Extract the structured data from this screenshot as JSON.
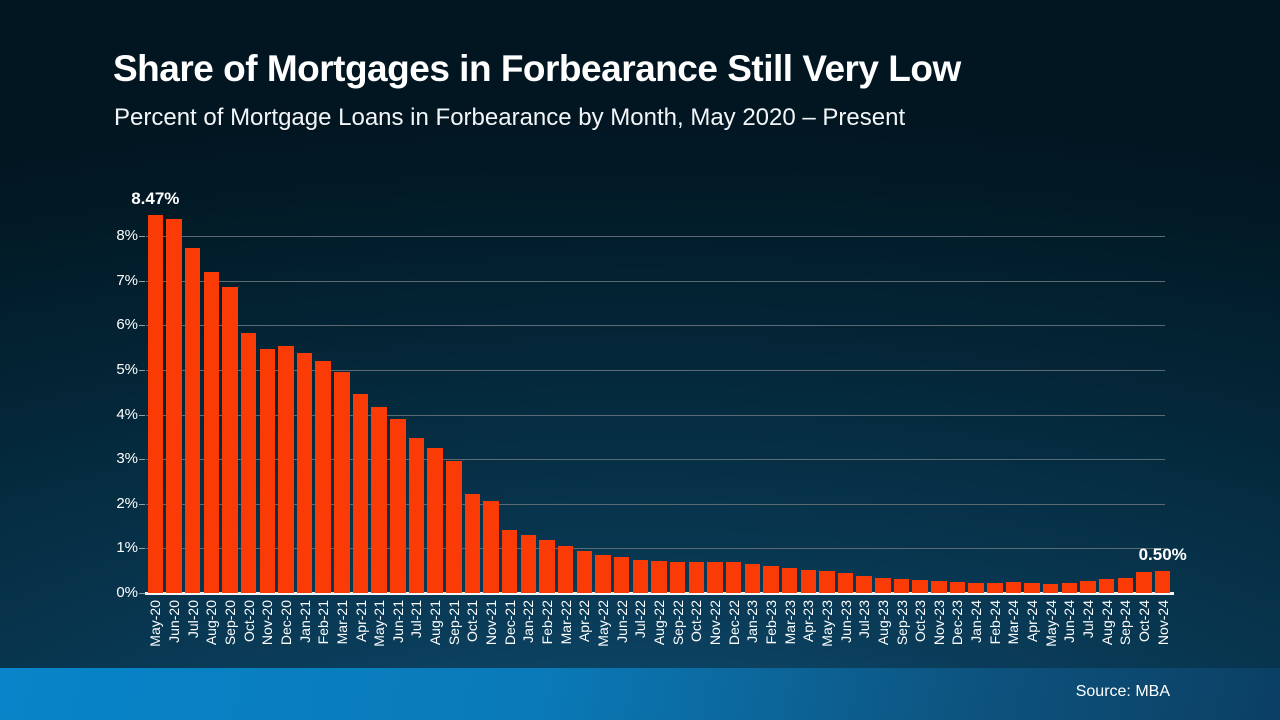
{
  "slide": {
    "title": "Share of Mortgages in Forbearance Still Very Low",
    "subtitle": "Percent of Mortgage Loans in Forbearance by Month, May 2020 – Present",
    "source": "Source: MBA"
  },
  "colors": {
    "bar": "#fb3b05",
    "gridline": "#5c6b73",
    "axis_line": "#f4f6f7",
    "text": "#ffffff",
    "background_top": "#021a26",
    "background_bottom": "#135379",
    "footer_left": "#0884ca",
    "footer_right": "#0b3f63"
  },
  "chart_data": {
    "type": "bar",
    "title": "Share of Mortgages in Forbearance Still Very Low",
    "subtitle": "Percent of Mortgage Loans in Forbearance by Month, May 2020 – Present",
    "xlabel": "",
    "ylabel": "",
    "ylim": [
      0,
      8.8
    ],
    "grid": true,
    "yticks": [
      "0%",
      "1%",
      "2%",
      "3%",
      "4%",
      "5%",
      "6%",
      "7%",
      "8%"
    ],
    "categories": [
      "May-20",
      "Jun-20",
      "Jul-20",
      "Aug-20",
      "Sep-20",
      "Oct-20",
      "Nov-20",
      "Dec-20",
      "Jan-21",
      "Feb-21",
      "Mar-21",
      "Apr-21",
      "May-21",
      "Jun-21",
      "Jul-21",
      "Aug-21",
      "Sep-21",
      "Oct-21",
      "Nov-21",
      "Dec-21",
      "Jan-22",
      "Feb-22",
      "Mar-22",
      "Apr-22",
      "May-22",
      "Jun-22",
      "Jul-22",
      "Aug-22",
      "Sep-22",
      "Oct-22",
      "Nov-22",
      "Dec-22",
      "Jan-23",
      "Feb-23",
      "Mar-23",
      "Apr-23",
      "May-23",
      "Jun-23",
      "Jul-23",
      "Aug-23",
      "Sep-23",
      "Oct-23",
      "Nov-23",
      "Dec-23",
      "Jan-24",
      "Feb-24",
      "Mar-24",
      "Apr-24",
      "May-24",
      "Jun-24",
      "Jul-24",
      "Aug-24",
      "Sep-24",
      "Oct-24",
      "Nov-24"
    ],
    "values": [
      8.47,
      8.39,
      7.74,
      7.2,
      6.87,
      5.83,
      5.48,
      5.53,
      5.38,
      5.2,
      4.96,
      4.47,
      4.18,
      3.91,
      3.47,
      3.25,
      2.96,
      2.21,
      2.06,
      1.41,
      1.3,
      1.18,
      1.05,
      0.94,
      0.85,
      0.81,
      0.74,
      0.72,
      0.69,
      0.7,
      0.7,
      0.7,
      0.64,
      0.6,
      0.55,
      0.51,
      0.49,
      0.44,
      0.39,
      0.33,
      0.31,
      0.29,
      0.26,
      0.24,
      0.22,
      0.22,
      0.24,
      0.22,
      0.21,
      0.23,
      0.27,
      0.31,
      0.34,
      0.47,
      0.5
    ],
    "annotations": [
      {
        "index": 0,
        "text": "8.47%"
      },
      {
        "index": 54,
        "text": "0.50%"
      }
    ],
    "legend": null
  }
}
